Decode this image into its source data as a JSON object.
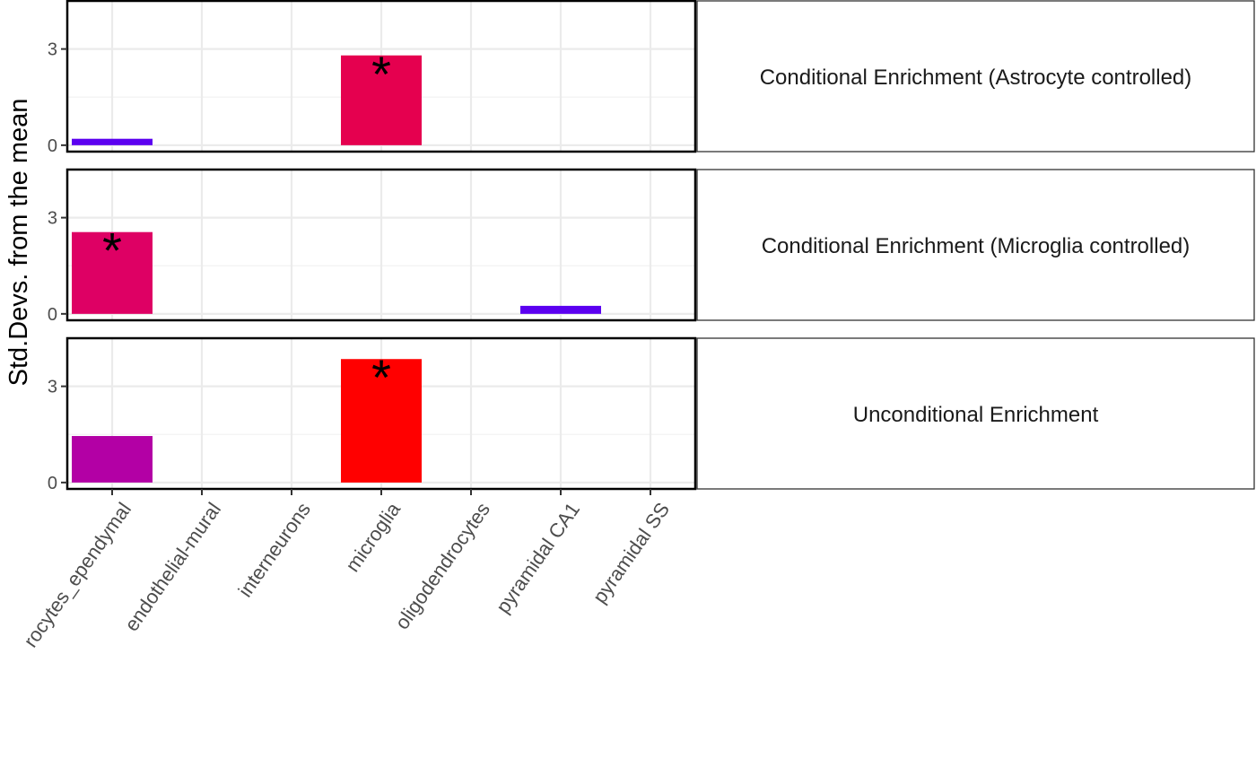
{
  "chart_data": {
    "type": "bar",
    "ylabel": "Std.Devs. from the mean",
    "xlabel": "",
    "categories": [
      "astrocytes_ependymal",
      "endothelial-mural",
      "interneurons",
      "microglia",
      "oligodendrocytes",
      "pyramidal CA1",
      "pyramidal SS"
    ],
    "x_tick_labels": [
      "rocytes_ependymal",
      "endothelial-mural",
      "interneurons",
      "microglia",
      "oligodendrocytes",
      "pyramidal CA1",
      "pyramidal SS"
    ],
    "ylim": [
      -0.2,
      4.5
    ],
    "y_ticks": [
      0,
      3
    ],
    "grid": true,
    "significance_marker": "*",
    "panels": [
      {
        "label": "Conditional Enrichment (Astrocyte controlled)",
        "values": [
          0.2,
          0,
          0,
          2.8,
          0,
          0,
          0
        ],
        "colors": [
          "#5B00F0",
          "",
          "",
          "#E5004F",
          "",
          "",
          ""
        ],
        "significant": [
          false,
          false,
          false,
          true,
          false,
          false,
          false
        ]
      },
      {
        "label": "Conditional Enrichment (Microglia controlled)",
        "values": [
          2.55,
          0,
          0,
          0,
          0,
          0.25,
          0
        ],
        "colors": [
          "#DE0064",
          "",
          "",
          "",
          "",
          "#5B00F0",
          ""
        ],
        "significant": [
          true,
          false,
          false,
          false,
          false,
          false,
          false
        ]
      },
      {
        "label": "Unconditional Enrichment",
        "values": [
          1.45,
          0,
          0,
          3.85,
          0,
          0,
          0
        ],
        "colors": [
          "#B300A5",
          "",
          "",
          "#FF0000",
          "",
          "",
          ""
        ],
        "significant": [
          false,
          false,
          false,
          true,
          false,
          false,
          false
        ]
      }
    ]
  }
}
